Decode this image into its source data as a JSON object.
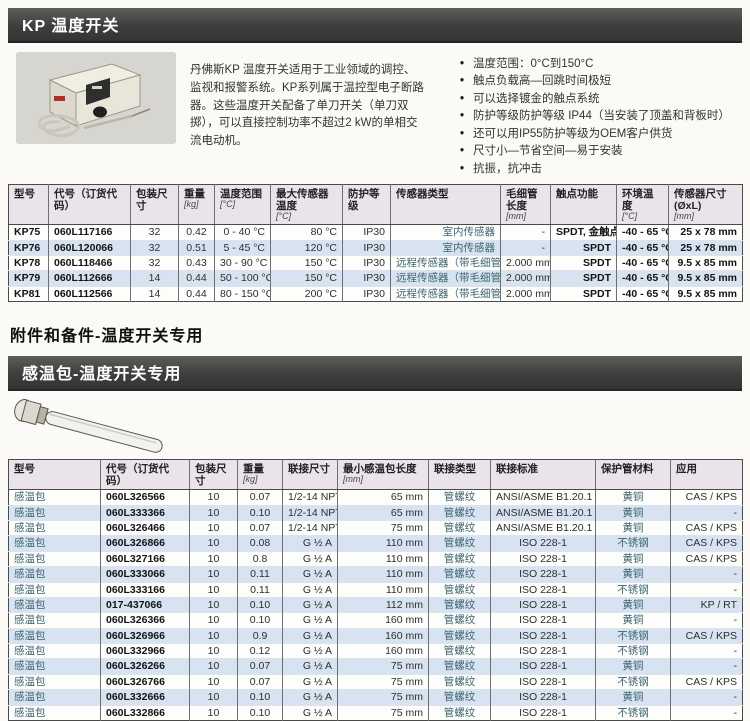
{
  "colors": {
    "header_bar_bg": "#3e3e3c",
    "header_bar_text": "#ffffff",
    "table_header_bg": "#eae3ea",
    "row_stripe": "#d7e3f1",
    "border_dark": "#4a4a4a"
  },
  "kp_section": {
    "bar_title": "KP 温度开关",
    "description": "丹佛斯KP 温度开关适用于工业领域的调控、监视和报警系统。KP系列属于温控型电子断路器。这些温度开关配备了单刀开关（单刀双掷），可以直接控制功率不超过2 kW的单相交流电动机。",
    "bullets": [
      "温度范围：0°C到150°C",
      "触点负载高—回跳时间极短",
      "可以选择镀金的触点系统",
      "防护等级防护等级 IP44（当安装了顶盖和背板时）",
      "还可以用IP55防护等级为OEM客户供货",
      "尺寸小—节省空间—易于安装",
      "抗振，抗冲击"
    ],
    "table": {
      "columns": [
        {
          "label": "型号",
          "unit": ""
        },
        {
          "label": "代号（订货代码）",
          "unit": ""
        },
        {
          "label": "包装尺寸",
          "unit": ""
        },
        {
          "label": "重量",
          "unit": "[kg]"
        },
        {
          "label": "温度范围",
          "unit": "[°C]"
        },
        {
          "label": "最大传感器温度",
          "unit": "[°C]"
        },
        {
          "label": "防护等级",
          "unit": ""
        },
        {
          "label": "传感器类型",
          "unit": ""
        },
        {
          "label": "毛细管长度",
          "unit": "[mm]"
        },
        {
          "label": "触点功能",
          "unit": ""
        },
        {
          "label": "环境温度",
          "unit": "[°C]"
        },
        {
          "label": "传感器尺寸 (ØxL)",
          "unit": "[mm]"
        }
      ],
      "rows": [
        [
          "KP75",
          "060L117166",
          "32",
          "0.42",
          "0 - 40 °C",
          "80 °C",
          "IP30",
          "室内传感器",
          "-",
          "SPDT, 金触点",
          "-40 - 65 °C",
          "25 x 78 mm"
        ],
        [
          "KP76",
          "060L120066",
          "32",
          "0.51",
          "5 - 45 °C",
          "120 °C",
          "IP30",
          "室内传感器",
          "-",
          "SPDT",
          "-40 - 65 °C",
          "25 x 78 mm"
        ],
        [
          "KP78",
          "060L118466",
          "32",
          "0.43",
          "30 - 90 °C",
          "150 °C",
          "IP30",
          "远程传感器（带毛细管）",
          "2.000 mm",
          "SPDT",
          "-40 - 65 °C",
          "9.5 x 85 mm"
        ],
        [
          "KP79",
          "060L112666",
          "14",
          "0.44",
          "50 - 100 °C",
          "150 °C",
          "IP30",
          "远程传感器（带毛细管）",
          "2.000 mm",
          "SPDT",
          "-40 - 65 °C",
          "9.5 x 85 mm"
        ],
        [
          "KP81",
          "060L112566",
          "14",
          "0.44",
          "80 - 150 °C",
          "200 °C",
          "IP30",
          "远程传感器（带毛细管）",
          "2.000 mm",
          "SPDT",
          "-40 - 65 °C",
          "9.5 x 85 mm"
        ]
      ]
    }
  },
  "accessories_section": {
    "title": "附件和备件-温度开关专用",
    "bar_title": "感温包-温度开关专用",
    "table": {
      "columns": [
        {
          "label": "型号",
          "unit": ""
        },
        {
          "label": "代号（订货代码）",
          "unit": ""
        },
        {
          "label": "包装尺寸",
          "unit": ""
        },
        {
          "label": "重量",
          "unit": "[kg]"
        },
        {
          "label": "联接尺寸",
          "unit": ""
        },
        {
          "label": "最小感温包长度",
          "unit": "[mm]"
        },
        {
          "label": "联接类型",
          "unit": ""
        },
        {
          "label": "联接标准",
          "unit": ""
        },
        {
          "label": "保护管材料",
          "unit": ""
        },
        {
          "label": "应用",
          "unit": ""
        }
      ],
      "rows": [
        [
          "感温包",
          "060L326566",
          "10",
          "0.07",
          "1/2-14 NPT",
          "65 mm",
          "管螺纹",
          "ANSI/ASME B1.20.1",
          "黄铜",
          "CAS / KPS"
        ],
        [
          "感温包",
          "060L333366",
          "10",
          "0.10",
          "1/2-14 NPT",
          "65 mm",
          "管螺纹",
          "ANSI/ASME B1.20.1",
          "黄铜",
          "-"
        ],
        [
          "感温包",
          "060L326466",
          "10",
          "0.07",
          "1/2-14 NPT",
          "75 mm",
          "管螺纹",
          "ANSI/ASME B1.20.1",
          "黄铜",
          "CAS / KPS"
        ],
        [
          "感温包",
          "060L326866",
          "10",
          "0.08",
          "G ½ A",
          "110 mm",
          "管螺纹",
          "ISO 228-1",
          "不锈钢",
          "CAS / KPS"
        ],
        [
          "感温包",
          "060L327166",
          "10",
          "0.8",
          "G ½ A",
          "110 mm",
          "管螺纹",
          "ISO 228-1",
          "黄铜",
          "CAS / KPS"
        ],
        [
          "感温包",
          "060L333066",
          "10",
          "0.11",
          "G ½ A",
          "110 mm",
          "管螺纹",
          "ISO 228-1",
          "黄铜",
          "-"
        ],
        [
          "感温包",
          "060L333166",
          "10",
          "0.11",
          "G ½ A",
          "110 mm",
          "管螺纹",
          "ISO 228-1",
          "不锈钢",
          "-"
        ],
        [
          "感温包",
          "017-437066",
          "10",
          "0.10",
          "G ½ A",
          "112 mm",
          "管螺纹",
          "ISO 228-1",
          "黄铜",
          "KP / RT"
        ],
        [
          "感温包",
          "060L326366",
          "10",
          "0.10",
          "G ½ A",
          "160 mm",
          "管螺纹",
          "ISO 228-1",
          "黄铜",
          "-"
        ],
        [
          "感温包",
          "060L326966",
          "10",
          "0.9",
          "G ½ A",
          "160 mm",
          "管螺纹",
          "ISO 228-1",
          "不锈钢",
          "CAS / KPS"
        ],
        [
          "感温包",
          "060L332966",
          "10",
          "0.12",
          "G ½ A",
          "160 mm",
          "管螺纹",
          "ISO 228-1",
          "不锈钢",
          "-"
        ],
        [
          "感温包",
          "060L326266",
          "10",
          "0.07",
          "G ½ A",
          "75 mm",
          "管螺纹",
          "ISO 228-1",
          "黄铜",
          "-"
        ],
        [
          "感温包",
          "060L326766",
          "10",
          "0.07",
          "G ½ A",
          "75 mm",
          "管螺纹",
          "ISO 228-1",
          "不锈钢",
          "CAS / KPS"
        ],
        [
          "感温包",
          "060L332666",
          "10",
          "0.10",
          "G ½ A",
          "75 mm",
          "管螺纹",
          "ISO 228-1",
          "黄铜",
          "-"
        ],
        [
          "感温包",
          "060L332866",
          "10",
          "0.10",
          "G ½ A",
          "75 mm",
          "管螺纹",
          "ISO 228-1",
          "不锈钢",
          "-"
        ]
      ]
    }
  }
}
